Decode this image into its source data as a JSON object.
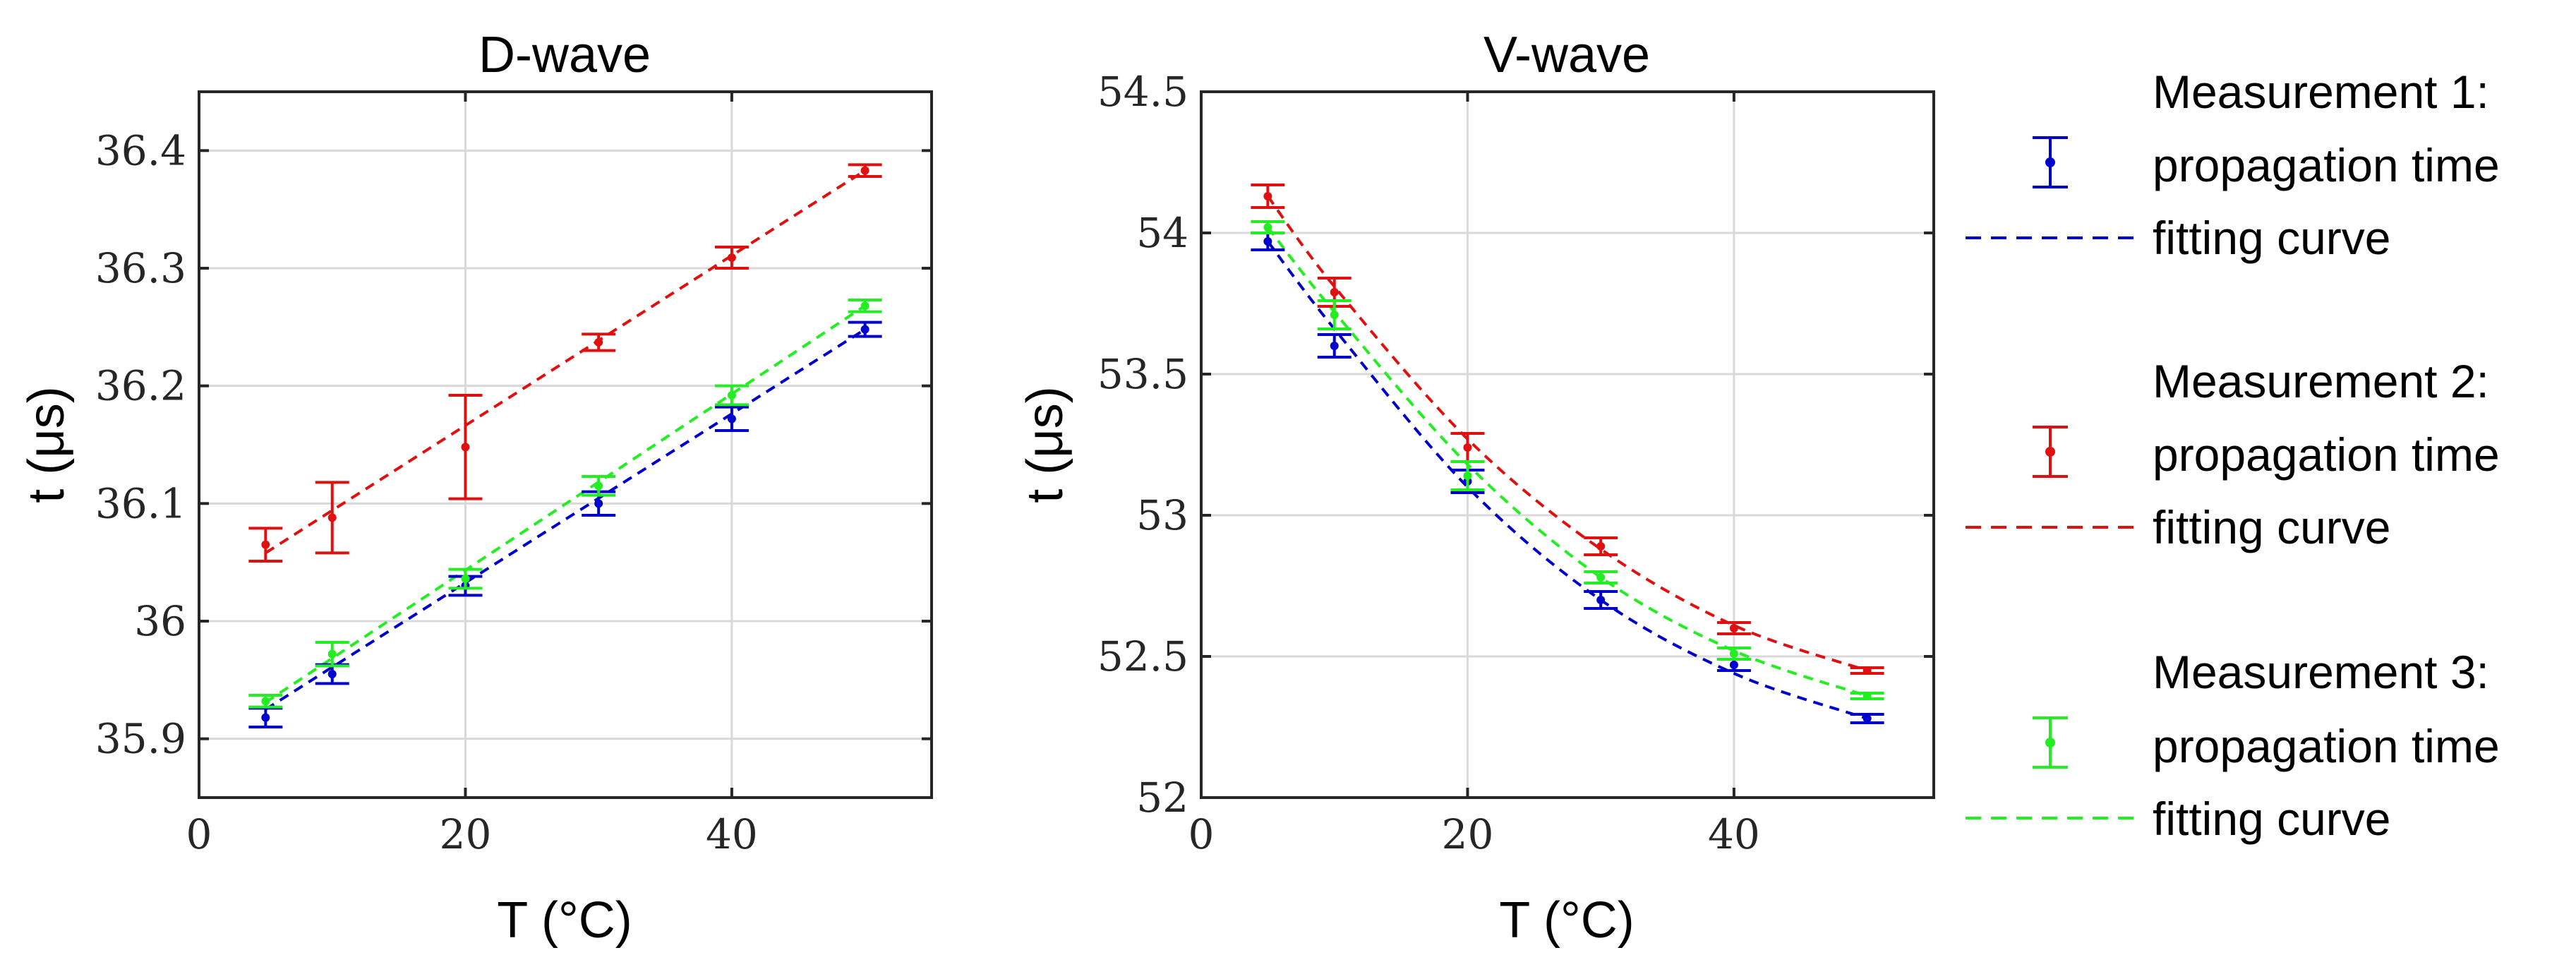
{
  "chart_data": [
    {
      "type": "scatter",
      "title": "D-wave",
      "xlabel": "T (°C)",
      "ylabel": "t (μs)",
      "xlim": [
        0,
        55
      ],
      "ylim": [
        35.85,
        36.45
      ],
      "xticks": [
        0,
        20,
        40
      ],
      "yticks": [
        35.9,
        36,
        36.1,
        36.2,
        36.3,
        36.4
      ],
      "ytick_labels": [
        "35.9",
        "36",
        "36.1",
        "36.2",
        "36.3",
        "36.4"
      ],
      "grid": true,
      "x": [
        5,
        10,
        20,
        30,
        40,
        50
      ],
      "series": [
        {
          "name": "Measurement 1",
          "color": "#0000cc",
          "values": [
            35.918,
            35.955,
            36.03,
            36.1,
            36.172,
            36.248
          ],
          "errors": [
            0.008,
            0.008,
            0.008,
            0.01,
            0.01,
            0.006
          ],
          "fit_x": [
            5,
            50
          ],
          "fit_y": [
            35.925,
            36.248
          ]
        },
        {
          "name": "Measurement 2",
          "color": "#e01010",
          "values": [
            36.065,
            36.088,
            36.148,
            36.237,
            36.309,
            36.383
          ],
          "errors": [
            0.014,
            0.03,
            0.044,
            0.007,
            0.009,
            0.005
          ],
          "fit_x": [
            5,
            50
          ],
          "fit_y": [
            36.058,
            36.383
          ]
        },
        {
          "name": "Measurement 3",
          "color": "#22ee22",
          "values": [
            35.932,
            35.972,
            36.036,
            36.115,
            36.192,
            36.268
          ],
          "errors": [
            0.005,
            0.01,
            0.008,
            0.008,
            0.008,
            0.005
          ],
          "fit_x": [
            5,
            50
          ],
          "fit_y": [
            35.931,
            36.268
          ]
        }
      ]
    },
    {
      "type": "scatter",
      "title": "V-wave",
      "xlabel": "T (°C)",
      "ylabel": "t (μs)",
      "xlim": [
        0,
        55
      ],
      "ylim": [
        52,
        54.5
      ],
      "xticks": [
        0,
        20,
        40
      ],
      "yticks": [
        52,
        52.5,
        53,
        53.5,
        54,
        54.5
      ],
      "ytick_labels": [
        "52",
        "52.5",
        "53",
        "53.5",
        "54",
        "54.5"
      ],
      "grid": true,
      "x": [
        5,
        10,
        20,
        30,
        40,
        50
      ],
      "series": [
        {
          "name": "Measurement 1",
          "color": "#0000cc",
          "values": [
            53.97,
            53.6,
            53.12,
            52.7,
            52.47,
            52.28
          ],
          "errors": [
            0.03,
            0.04,
            0.04,
            0.03,
            0.02,
            0.015
          ],
          "fit_x": [
            5,
            10,
            20,
            30,
            40,
            50
          ],
          "fit_y": [
            53.97,
            53.66,
            53.1,
            52.7,
            52.44,
            52.28
          ]
        },
        {
          "name": "Measurement 2",
          "color": "#e01010",
          "values": [
            54.13,
            53.79,
            53.24,
            52.89,
            52.6,
            52.45
          ],
          "errors": [
            0.04,
            0.05,
            0.05,
            0.03,
            0.02,
            0.01
          ],
          "fit_x": [
            5,
            10,
            20,
            30,
            40,
            50
          ],
          "fit_y": [
            54.13,
            53.81,
            53.27,
            52.88,
            52.61,
            52.45
          ]
        },
        {
          "name": "Measurement 3",
          "color": "#22ee22",
          "values": [
            54.02,
            53.71,
            53.14,
            52.78,
            52.51,
            52.36
          ],
          "errors": [
            0.02,
            0.05,
            0.05,
            0.02,
            0.02,
            0.01
          ],
          "fit_x": [
            5,
            10,
            20,
            30,
            40,
            50
          ],
          "fit_y": [
            54.02,
            53.72,
            53.18,
            52.78,
            52.52,
            52.36
          ]
        }
      ]
    }
  ],
  "legend": {
    "placement": "right",
    "entries": [
      {
        "color": "#0000cc",
        "line1": "Measurement 1:",
        "line2": "propagation time",
        "line3": "fitting curve"
      },
      {
        "color": "#e01010",
        "line1": "Measurement 2:",
        "line2": "propagation time",
        "line3": "fitting curve"
      },
      {
        "color": "#22ee22",
        "line1": "Measurement 3:",
        "line2": "propagation time",
        "line3": "fitting curve"
      }
    ]
  }
}
